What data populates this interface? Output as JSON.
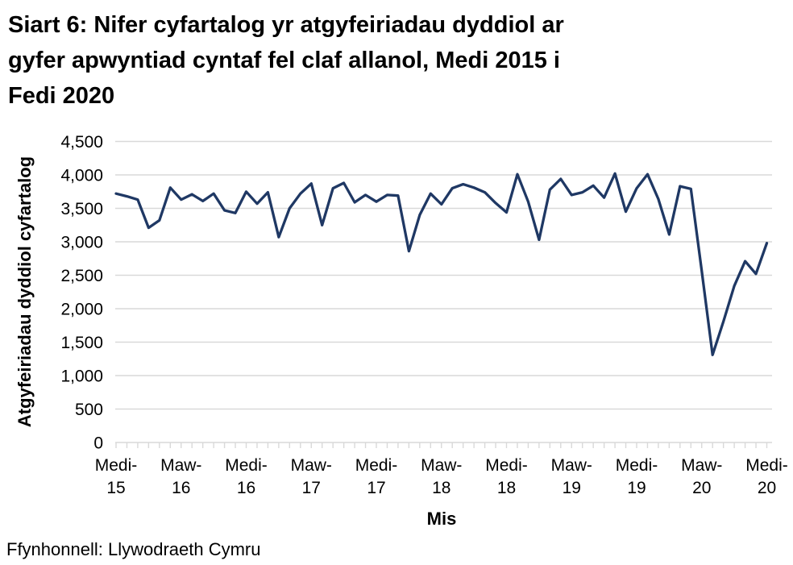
{
  "chart": {
    "title_lines": [
      "Siart 6: Nifer cyfartalog yr atgyfeiriadau dyddiol ar",
      "gyfer apwyntiad cyntaf fel claf allanol, Medi 2015 i",
      "Fedi 2020"
    ],
    "y_axis": {
      "title": "Atgyfeiriadau dyddiol cyfartalog",
      "tick_labels": [
        "0",
        "500",
        "1,000",
        "1,500",
        "2,000",
        "2,500",
        "3,000",
        "3,500",
        "4,000",
        "4,500"
      ]
    },
    "x_axis": {
      "title": "Mis",
      "tick_labels": [
        {
          "top": "Medi-",
          "bottom": "15"
        },
        {
          "top": "Maw-",
          "bottom": "16"
        },
        {
          "top": "Medi-",
          "bottom": "16"
        },
        {
          "top": "Maw-",
          "bottom": "17"
        },
        {
          "top": "Medi-",
          "bottom": "17"
        },
        {
          "top": "Maw-",
          "bottom": "18"
        },
        {
          "top": "Medi-",
          "bottom": "18"
        },
        {
          "top": "Maw-",
          "bottom": "19"
        },
        {
          "top": "Medi-",
          "bottom": "19"
        },
        {
          "top": "Maw-",
          "bottom": "20"
        },
        {
          "top": "Medi-",
          "bottom": "20"
        }
      ]
    },
    "source": "Ffynhonnell: Llywodraeth Cymru",
    "colors": {
      "line": "#1F3864",
      "grid": "#D9D9D9",
      "axis": "#D9D9D9",
      "text": "#000000"
    }
  },
  "chart_data": {
    "type": "line",
    "title": "Siart 6: Nifer cyfartalog yr atgyfeiriadau dyddiol ar gyfer apwyntiad cyntaf fel claf allanol, Medi 2015 i Fedi 2020",
    "xlabel": "Mis",
    "ylabel": "Atgyfeiriadau dyddiol cyfartalog",
    "x_unit": "monthly, Medi 2015 to Medi 2020",
    "x_visible_ticks": [
      "Medi-15",
      "Maw-16",
      "Medi-16",
      "Maw-17",
      "Medi-17",
      "Maw-18",
      "Medi-18",
      "Maw-19",
      "Medi-19",
      "Maw-20",
      "Medi-20"
    ],
    "ylim": [
      0,
      4500
    ],
    "y_step": 500,
    "grid": "horizontal",
    "legend": "none",
    "series": [
      {
        "name": "Atgyfeiriadau dyddiol cyfartalog",
        "values": [
          3720,
          3680,
          3630,
          3210,
          3320,
          3810,
          3630,
          3710,
          3610,
          3720,
          3470,
          3430,
          3750,
          3570,
          3740,
          3070,
          3500,
          3720,
          3870,
          3250,
          3800,
          3880,
          3590,
          3700,
          3600,
          3700,
          3690,
          2860,
          3400,
          3720,
          3560,
          3800,
          3860,
          3810,
          3740,
          3580,
          3440,
          4010,
          3600,
          3030,
          3780,
          3940,
          3700,
          3740,
          3840,
          3660,
          4020,
          3450,
          3800,
          4010,
          3640,
          3110,
          3830,
          3790,
          2560,
          1310,
          1810,
          2340,
          2710,
          2520,
          2980
        ]
      }
    ]
  }
}
